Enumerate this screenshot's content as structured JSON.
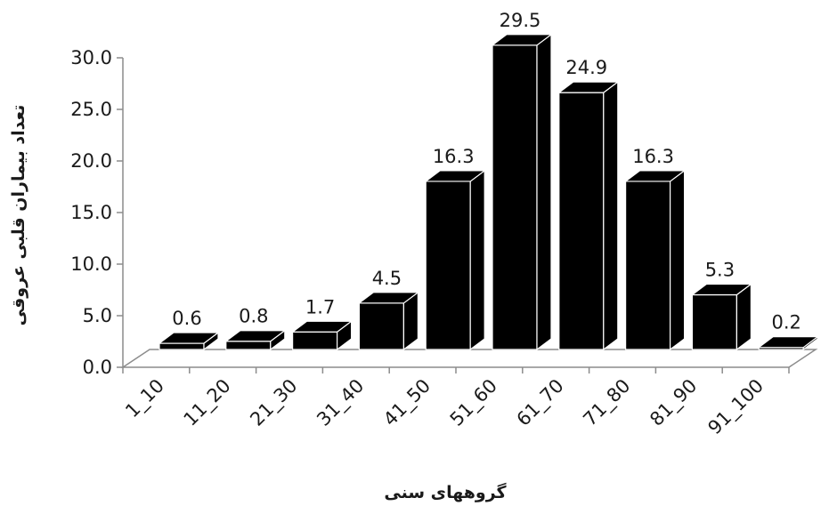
{
  "chart_data": {
    "type": "bar",
    "style": "3d",
    "categories": [
      "1_10",
      "11_20",
      "21_30",
      "31_40",
      "41_50",
      "51_60",
      "61_70",
      "71_80",
      "81_90",
      "91_100"
    ],
    "values": [
      0.6,
      0.8,
      1.7,
      4.5,
      16.3,
      29.5,
      24.9,
      16.3,
      5.3,
      0.2
    ],
    "data_labels": [
      "0.6",
      "0.8",
      "1.7",
      "4.5",
      "16.3",
      "29.5",
      "24.9",
      "16.3",
      "5.3",
      "0.2"
    ],
    "y_ticks": [
      "0.0",
      "5.0",
      "10.0",
      "15.0",
      "20.0",
      "25.0",
      "30.0"
    ],
    "ylim": [
      0,
      30
    ],
    "xlabel": "گروههای سنی",
    "ylabel": "تعداد بیماران قلبی عروقی",
    "bar_color": "#000000",
    "grid": false,
    "legend": "none"
  }
}
